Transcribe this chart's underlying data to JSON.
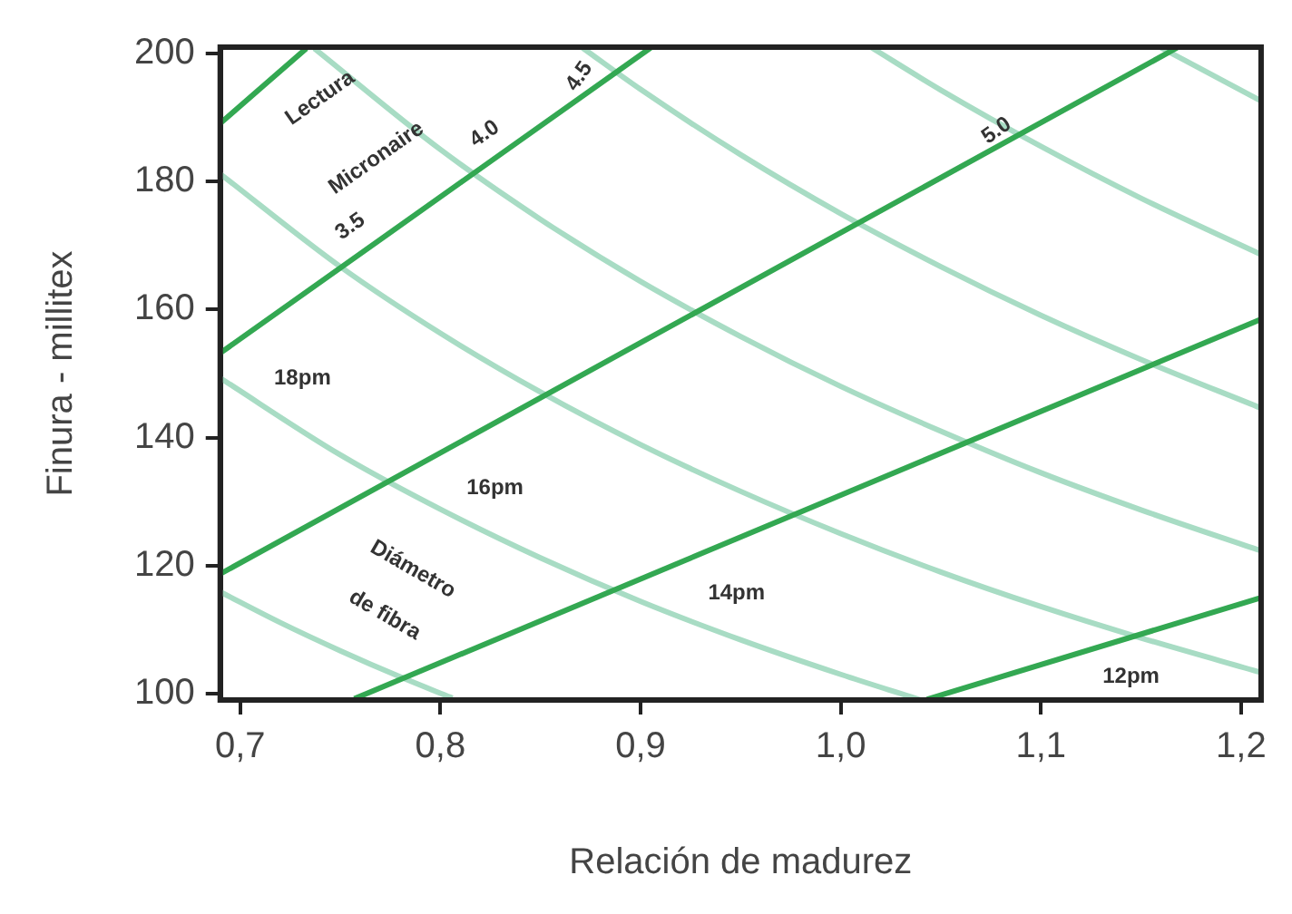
{
  "chart_data": {
    "type": "line",
    "xlabel": "Relación de madurez",
    "ylabel": "Finura - millitex",
    "xlim": [
      0.69,
      1.21
    ],
    "xticks": [
      {
        "value": 0.7,
        "label": "0,7"
      },
      {
        "value": 0.8,
        "label": "0,8"
      },
      {
        "value": 0.9,
        "label": "0,9"
      },
      {
        "value": 1.0,
        "label": "1,0"
      },
      {
        "value": 1.1,
        "label": "1,1"
      },
      {
        "value": 1.2,
        "label": "1,2"
      }
    ],
    "ylim": [
      99,
      201
    ],
    "yticks": [
      100,
      120,
      140,
      160,
      180,
      200
    ],
    "grid": false,
    "legend": false,
    "marker": "none",
    "line_style": "solid",
    "series": [
      {
        "color": "#33a852",
        "x": [
          0.69,
          0.733
        ],
        "values": [
          189.1,
          200.8
        ]
      },
      {
        "color": "#33a852",
        "x": [
          0.69,
          0.905
        ],
        "values": [
          153.2,
          200.9
        ]
      },
      {
        "color": "#33a852",
        "x": [
          0.69,
          1.168
        ],
        "values": [
          118.7,
          200.9
        ]
      },
      {
        "color": "#33a852",
        "x": [
          0.757,
          1.21
        ],
        "values": [
          99.2,
          158.5
        ]
      },
      {
        "color": "#33a852",
        "x": [
          1.043,
          1.21
        ],
        "values": [
          99.1,
          115.0
        ]
      },
      {
        "color": "#a8dcc4",
        "x": [
          0.69,
          0.72,
          0.75,
          0.78,
          0.806
        ],
        "values": [
          115.9,
          111.1,
          106.7,
          102.6,
          99.3
        ]
      },
      {
        "color": "#a8dcc4",
        "x": [
          0.69,
          0.75,
          0.8,
          0.85,
          0.9,
          0.95,
          1.0,
          1.04
        ],
        "values": [
          149.3,
          137.3,
          128.8,
          121.2,
          114.4,
          108.4,
          103,
          99.0
        ]
      },
      {
        "color": "#a8dcc4",
        "x": [
          0.69,
          0.75,
          0.8,
          0.85,
          0.9,
          0.95,
          1.0,
          1.05,
          1.1,
          1.15,
          1.21
        ],
        "values": [
          181.2,
          166.7,
          156.3,
          147.1,
          138.9,
          131.6,
          125,
          119,
          113.6,
          108.7,
          103.3
        ]
      },
      {
        "color": "#a8dcc4",
        "x": [
          0.737,
          0.8,
          0.85,
          0.9,
          0.95,
          1.0,
          1.05,
          1.1,
          1.15,
          1.21
        ],
        "values": [
          200.8,
          185,
          174.1,
          164.4,
          155.8,
          148,
          141,
          134.5,
          128.7,
          122.3
        ]
      },
      {
        "color": "#a8dcc4",
        "x": [
          0.871,
          0.9,
          0.95,
          1.0,
          1.05,
          1.1,
          1.15,
          1.21
        ],
        "values": [
          200.9,
          194.4,
          184.2,
          175,
          166.7,
          159.1,
          152.2,
          144.6
        ]
      },
      {
        "color": "#a8dcc4",
        "x": [
          1.015,
          1.05,
          1.1,
          1.15,
          1.21
        ],
        "values": [
          201,
          194.3,
          185.5,
          177.4,
          168.6
        ]
      },
      {
        "color": "#a8dcc4",
        "x": [
          1.16,
          1.21
        ],
        "values": [
          200.9,
          192.6
        ]
      }
    ],
    "annotations": [
      "Lectura",
      "Micronaire",
      "3.5",
      "4.0",
      "4.5",
      "5.0",
      "18pm",
      "16pm",
      "Diámetro",
      "de fibra",
      "14pm",
      "12pm"
    ]
  }
}
